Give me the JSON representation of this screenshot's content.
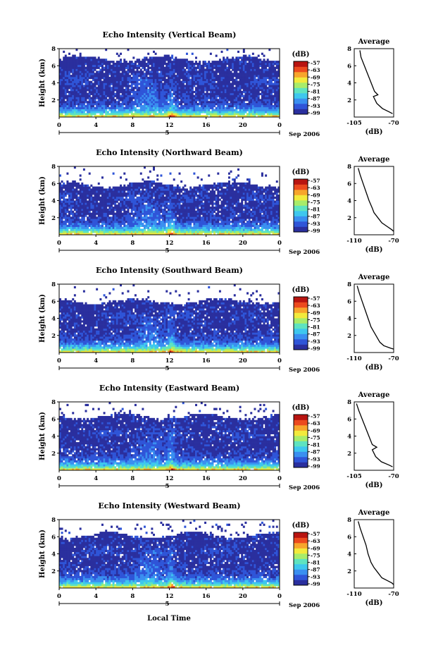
{
  "figure": {
    "xlabel": "Local Time",
    "date_label": "Sep 2006",
    "day_label": "5",
    "ylabel": "Height (km)",
    "colorbar_unit": "(dB)",
    "colorbar_ticks": [
      "-57",
      "-63",
      "-69",
      "-75",
      "-81",
      "-87",
      "-93",
      "-99"
    ],
    "avg_title": "Average",
    "avg_xlabel": "(dB)",
    "colors": {
      "scale": [
        "#2a2f9e",
        "#2f55d8",
        "#3a8ff0",
        "#3ec7ee",
        "#5ee3c0",
        "#a8ec6a",
        "#f2ea3c",
        "#f7a52c",
        "#ec4a1e",
        "#b81410"
      ],
      "text": "#000000",
      "background": "#ffffff"
    }
  },
  "chart_data": [
    {
      "type": "heatmap",
      "title": "Echo Intensity (Vertical Beam)",
      "xlabel": "",
      "ylabel": "Height (km)",
      "xlim": [
        0,
        24
      ],
      "ylim": [
        0,
        8
      ],
      "x_ticks": [
        "0",
        "4",
        "8",
        "12",
        "16",
        "20",
        "0"
      ],
      "y_ticks": [
        "2",
        "4",
        "6",
        "8"
      ],
      "colorbar": {
        "unit": "(dB)",
        "ticks": [
          -57,
          -63,
          -69,
          -75,
          -81,
          -87,
          -93,
          -99
        ],
        "range": [
          -99,
          -57
        ]
      },
      "echo_top_km": 6.8,
      "avg_profile": {
        "title": "Average",
        "xlabel": "(dB)",
        "x_ticks": [
          "-105",
          "-70"
        ],
        "xlim": [
          -105,
          -70
        ],
        "ylim": [
          0,
          8
        ],
        "y_ticks": [
          "2",
          "4",
          "6",
          "8"
        ],
        "points": [
          [
            -100,
            7.8
          ],
          [
            -99,
            7.0
          ],
          [
            -96,
            6.0
          ],
          [
            -93,
            5.0
          ],
          [
            -90,
            4.0
          ],
          [
            -87,
            3.0
          ],
          [
            -84,
            2.6
          ],
          [
            -88,
            2.4
          ],
          [
            -85,
            1.6
          ],
          [
            -80,
            1.0
          ],
          [
            -74,
            0.6
          ],
          [
            -71,
            0.4
          ]
        ]
      }
    },
    {
      "type": "heatmap",
      "title": "Echo Intensity (Northward Beam)",
      "xlabel": "",
      "ylabel": "Height (km)",
      "xlim": [
        0,
        24
      ],
      "ylim": [
        0,
        8
      ],
      "x_ticks": [
        "0",
        "4",
        "8",
        "12",
        "16",
        "20",
        "0"
      ],
      "y_ticks": [
        "2",
        "4",
        "6",
        "8"
      ],
      "colorbar": {
        "unit": "(dB)",
        "ticks": [
          -57,
          -63,
          -69,
          -75,
          -81,
          -87,
          -93,
          -99
        ],
        "range": [
          -99,
          -57
        ]
      },
      "echo_top_km": 5.9,
      "avg_profile": {
        "title": "Average",
        "xlabel": "(dB)",
        "x_ticks": [
          "-110",
          "-70"
        ],
        "xlim": [
          -110,
          -70
        ],
        "ylim": [
          0,
          8
        ],
        "y_ticks": [
          "2",
          "4",
          "6",
          "8"
        ],
        "points": [
          [
            -106,
            7.8
          ],
          [
            -104,
            7.0
          ],
          [
            -101,
            6.0
          ],
          [
            -98,
            5.0
          ],
          [
            -95,
            4.0
          ],
          [
            -92,
            3.2
          ],
          [
            -90,
            2.6
          ],
          [
            -86,
            2.0
          ],
          [
            -82,
            1.4
          ],
          [
            -77,
            1.0
          ],
          [
            -72,
            0.6
          ],
          [
            -70,
            0.4
          ]
        ]
      }
    },
    {
      "type": "heatmap",
      "title": "Echo Intensity (Southward Beam)",
      "xlabel": "",
      "ylabel": "Height (km)",
      "xlim": [
        0,
        24
      ],
      "ylim": [
        0,
        8
      ],
      "x_ticks": [
        "0",
        "4",
        "8",
        "12",
        "16",
        "20",
        "0"
      ],
      "y_ticks": [
        "2",
        "4",
        "6",
        "8"
      ],
      "colorbar": {
        "unit": "(dB)",
        "ticks": [
          -57,
          -63,
          -69,
          -75,
          -81,
          -87,
          -93,
          -99
        ],
        "range": [
          -99,
          -57
        ]
      },
      "echo_top_km": 6.0,
      "avg_profile": {
        "title": "Average",
        "xlabel": "(dB)",
        "x_ticks": [
          "-110",
          "-70"
        ],
        "xlim": [
          -110,
          -70
        ],
        "ylim": [
          0,
          8
        ],
        "y_ticks": [
          "2",
          "4",
          "6",
          "8"
        ],
        "points": [
          [
            -107,
            7.8
          ],
          [
            -105,
            7.0
          ],
          [
            -102,
            6.0
          ],
          [
            -99,
            5.0
          ],
          [
            -96,
            4.0
          ],
          [
            -93,
            3.0
          ],
          [
            -90,
            2.4
          ],
          [
            -87,
            1.8
          ],
          [
            -84,
            1.2
          ],
          [
            -80,
            0.8
          ],
          [
            -73,
            0.5
          ],
          [
            -70,
            0.4
          ]
        ]
      }
    },
    {
      "type": "heatmap",
      "title": "Echo Intensity (Eastward Beam)",
      "xlabel": "",
      "ylabel": "Height (km)",
      "xlim": [
        0,
        24
      ],
      "ylim": [
        0,
        8
      ],
      "x_ticks": [
        "0",
        "4",
        "8",
        "12",
        "16",
        "20",
        "0"
      ],
      "y_ticks": [
        "2",
        "4",
        "6",
        "8"
      ],
      "colorbar": {
        "unit": "(dB)",
        "ticks": [
          -57,
          -63,
          -69,
          -75,
          -81,
          -87,
          -93,
          -99
        ],
        "range": [
          -99,
          -57
        ]
      },
      "echo_top_km": 6.3,
      "avg_profile": {
        "title": "Average",
        "xlabel": "(dB)",
        "x_ticks": [
          "-105",
          "-70"
        ],
        "xlim": [
          -105,
          -70
        ],
        "ylim": [
          0,
          8
        ],
        "y_ticks": [
          "2",
          "4",
          "6",
          "8"
        ],
        "points": [
          [
            -103,
            7.8
          ],
          [
            -101,
            7.0
          ],
          [
            -98,
            6.0
          ],
          [
            -95,
            5.0
          ],
          [
            -92,
            4.0
          ],
          [
            -89,
            3.0
          ],
          [
            -85,
            2.7
          ],
          [
            -89,
            2.4
          ],
          [
            -86,
            1.6
          ],
          [
            -81,
            1.0
          ],
          [
            -74,
            0.6
          ],
          [
            -71,
            0.4
          ]
        ]
      }
    },
    {
      "type": "heatmap",
      "title": "Echo Intensity (Westward Beam)",
      "xlabel": "Local Time",
      "ylabel": "Height (km)",
      "xlim": [
        0,
        24
      ],
      "ylim": [
        0,
        8
      ],
      "x_ticks": [
        "0",
        "4",
        "8",
        "12",
        "16",
        "20",
        "0"
      ],
      "y_ticks": [
        "2",
        "4",
        "6",
        "8"
      ],
      "colorbar": {
        "unit": "(dB)",
        "ticks": [
          -57,
          -63,
          -69,
          -75,
          -81,
          -87,
          -93,
          -99
        ],
        "range": [
          -99,
          -57
        ]
      },
      "echo_top_km": 6.2,
      "avg_profile": {
        "title": "Average",
        "xlabel": "(dB)",
        "x_ticks": [
          "-110",
          "-70"
        ],
        "xlim": [
          -110,
          -70
        ],
        "ylim": [
          0,
          8
        ],
        "y_ticks": [
          "2",
          "4",
          "6",
          "8"
        ],
        "points": [
          [
            -106,
            7.8
          ],
          [
            -104,
            7.0
          ],
          [
            -101,
            6.0
          ],
          [
            -98,
            5.0
          ],
          [
            -96,
            4.0
          ],
          [
            -93,
            3.0
          ],
          [
            -90,
            2.4
          ],
          [
            -86,
            1.8
          ],
          [
            -82,
            1.2
          ],
          [
            -77,
            0.9
          ],
          [
            -72,
            0.6
          ],
          [
            -70,
            0.4
          ]
        ]
      }
    }
  ]
}
